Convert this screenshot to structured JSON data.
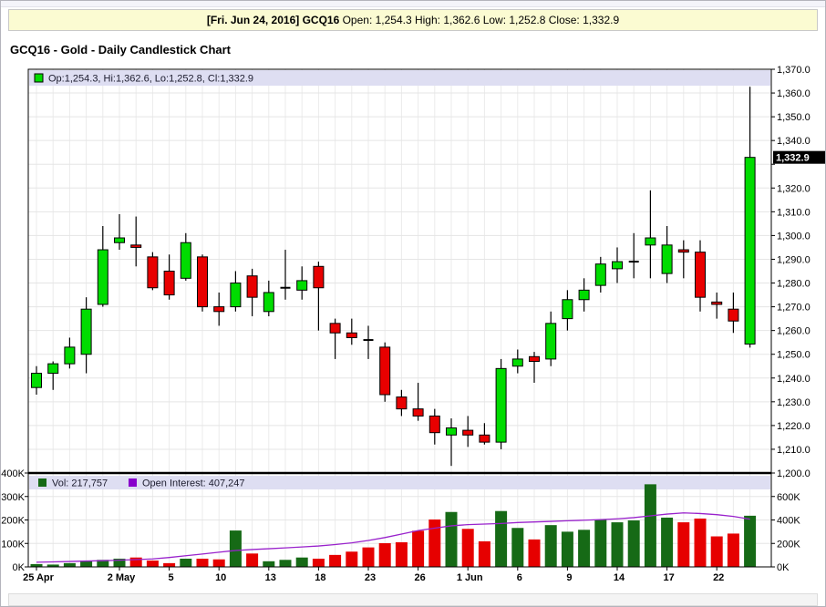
{
  "header": {
    "bold": "[Fri. Jun 24, 2016] GCQ16",
    "ohlc": " Open: 1,254.3 High: 1,362.6 Low: 1,252.8 Close: 1,332.9"
  },
  "title": "GCQ16 - Gold - Daily Candlestick Chart",
  "price_legend_text": "Op:1,254.3, Hi:1,362.6, Lo:1,252.8, Cl:1,332.9",
  "volume_legend": {
    "vol_text": "Vol: 217,757",
    "oi_text": "Open Interest: 407,247"
  },
  "last_price_label": "1,332.9",
  "colors": {
    "candle_up": "#00dc00",
    "candle_down": "#e80000",
    "candle_doji": "#000000",
    "candle_border": "#000000",
    "vol_up": "#166a16",
    "vol_down": "#e60000",
    "oi_line": "#9922cc",
    "oi_swatch": "#8800cc",
    "grid": "#e5e5e5",
    "grid_vertical": "#ebebeb",
    "legend_strip": "#dedef2",
    "panel_border": "#000000",
    "last_price_bg": "#000000"
  },
  "chart_data": {
    "type": "candlestick",
    "title": "GCQ16 - Gold - Daily Candlestick Chart",
    "price_axis": {
      "min": 1200,
      "max": 1370,
      "step": 10,
      "ticks": [
        {
          "v": 1370,
          "label": "1,370.0"
        },
        {
          "v": 1360,
          "label": "1,360.0"
        },
        {
          "v": 1350,
          "label": "1,350.0"
        },
        {
          "v": 1340,
          "label": "1,340.0"
        },
        {
          "v": 1330,
          "label": ""
        },
        {
          "v": 1320,
          "label": "1,320.0"
        },
        {
          "v": 1310,
          "label": "1,310.0"
        },
        {
          "v": 1300,
          "label": "1,300.0"
        },
        {
          "v": 1290,
          "label": "1,290.0"
        },
        {
          "v": 1280,
          "label": "1,280.0"
        },
        {
          "v": 1270,
          "label": "1,270.0"
        },
        {
          "v": 1260,
          "label": "1,260.0"
        },
        {
          "v": 1250,
          "label": "1,250.0"
        },
        {
          "v": 1240,
          "label": "1,240.0"
        },
        {
          "v": 1230,
          "label": "1,230.0"
        },
        {
          "v": 1220,
          "label": "1,220.0"
        },
        {
          "v": 1210,
          "label": "1,210.0"
        },
        {
          "v": 1200,
          "label": "1,200.0"
        }
      ]
    },
    "last_price": 1332.9,
    "volume_axis_left": {
      "max_k": 400,
      "ticks": [
        {
          "v": 400,
          "label": "400K"
        },
        {
          "v": 300,
          "label": "300K"
        },
        {
          "v": 200,
          "label": "200K"
        },
        {
          "v": 100,
          "label": "100K"
        },
        {
          "v": 0,
          "label": "0K"
        }
      ]
    },
    "volume_axis_right": {
      "max_k": 800,
      "ticks": [
        {
          "v": 600,
          "label": "600K"
        },
        {
          "v": 400,
          "label": "400K"
        },
        {
          "v": 200,
          "label": "200K"
        },
        {
          "v": 0,
          "label": "0K"
        }
      ]
    },
    "x_ticks": [
      {
        "i": 0,
        "label": "25 Apr"
      },
      {
        "i": 5,
        "label": "2 May"
      },
      {
        "i": 8,
        "label": "5"
      },
      {
        "i": 11,
        "label": "10"
      },
      {
        "i": 14,
        "label": "13"
      },
      {
        "i": 17,
        "label": "18"
      },
      {
        "i": 20,
        "label": "23"
      },
      {
        "i": 23,
        "label": "26"
      },
      {
        "i": 26,
        "label": "1 Jun"
      },
      {
        "i": 29,
        "label": "6"
      },
      {
        "i": 32,
        "label": "9"
      },
      {
        "i": 35,
        "label": "14"
      },
      {
        "i": 38,
        "label": "17"
      },
      {
        "i": 41,
        "label": "22"
      }
    ],
    "candles": [
      [
        1236,
        1245,
        1233,
        1242
      ],
      [
        1242,
        1247,
        1235,
        1246
      ],
      [
        1246,
        1257,
        1244,
        1253
      ],
      [
        1250,
        1274,
        1242,
        1269
      ],
      [
        1271,
        1304,
        1270,
        1294
      ],
      [
        1297,
        1309,
        1294,
        1299
      ],
      [
        1296,
        1308,
        1287,
        1295
      ],
      [
        1291,
        1293,
        1277,
        1278
      ],
      [
        1285,
        1292,
        1273,
        1275
      ],
      [
        1282,
        1301,
        1281,
        1297
      ],
      [
        1291,
        1292,
        1268,
        1270
      ],
      [
        1270,
        1276,
        1262,
        1268
      ],
      [
        1270,
        1285,
        1268,
        1280
      ],
      [
        1283,
        1286,
        1266,
        1274
      ],
      [
        1268,
        1281,
        1266,
        1276
      ],
      [
        1277,
        1294,
        1273,
        1278
      ],
      [
        1277,
        1287,
        1273,
        1281
      ],
      [
        1287,
        1289,
        1260,
        1278
      ],
      [
        1263,
        1265,
        1248,
        1259
      ],
      [
        1259,
        1265,
        1254,
        1257
      ],
      [
        1256,
        1262,
        1248,
        1256
      ],
      [
        1253,
        1255,
        1230,
        1233
      ],
      [
        1232,
        1235,
        1224,
        1227
      ],
      [
        1227,
        1238,
        1222,
        1224
      ],
      [
        1224,
        1227,
        1212,
        1217
      ],
      [
        1216,
        1223,
        1203,
        1219
      ],
      [
        1218,
        1224,
        1211,
        1216
      ],
      [
        1216,
        1221,
        1212,
        1213
      ],
      [
        1213,
        1248,
        1210,
        1244
      ],
      [
        1245,
        1252,
        1242,
        1248
      ],
      [
        1249,
        1251,
        1238,
        1247
      ],
      [
        1248,
        1268,
        1245,
        1263
      ],
      [
        1265,
        1277,
        1260,
        1273
      ],
      [
        1273,
        1282,
        1268,
        1277
      ],
      [
        1279,
        1291,
        1276,
        1288
      ],
      [
        1286,
        1295,
        1280,
        1289
      ],
      [
        1289,
        1301,
        1282,
        1289
      ],
      [
        1296,
        1319,
        1282,
        1299
      ],
      [
        1284,
        1304,
        1280,
        1296
      ],
      [
        1294,
        1298,
        1282,
        1293
      ],
      [
        1293,
        1298,
        1268,
        1274
      ],
      [
        1272,
        1276,
        1265,
        1271
      ],
      [
        1269,
        1276,
        1259,
        1264
      ],
      [
        1254.3,
        1362.6,
        1252.8,
        1332.9
      ]
    ],
    "directions": "GGGGGGRRRGRRGRGDGRRRDRRRRGRRGGRGGGGGDGGRRRRG",
    "vol_directions": "GGGGGGRRRGRRGRGGGRRRRRRRRGRRGGRGGGGGGGGRRRRG",
    "volumes_k": [
      12,
      10,
      16,
      27,
      30,
      35,
      40,
      27,
      16,
      35,
      35,
      32,
      155,
      57,
      24,
      30,
      40,
      35,
      51,
      65,
      83,
      101,
      105,
      154,
      202,
      234,
      162,
      109,
      238,
      166,
      117,
      178,
      150,
      158,
      202,
      190,
      198,
      352,
      210,
      190,
      206,
      130,
      142,
      218
    ],
    "open_interest_k": [
      40,
      43,
      46,
      50,
      53,
      57,
      62,
      68,
      80,
      95,
      110,
      125,
      140,
      148,
      155,
      162,
      170,
      178,
      190,
      205,
      225,
      250,
      280,
      310,
      330,
      350,
      360,
      365,
      370,
      378,
      383,
      388,
      393,
      398,
      403,
      410,
      420,
      435,
      450,
      460,
      455,
      445,
      430,
      407
    ]
  }
}
